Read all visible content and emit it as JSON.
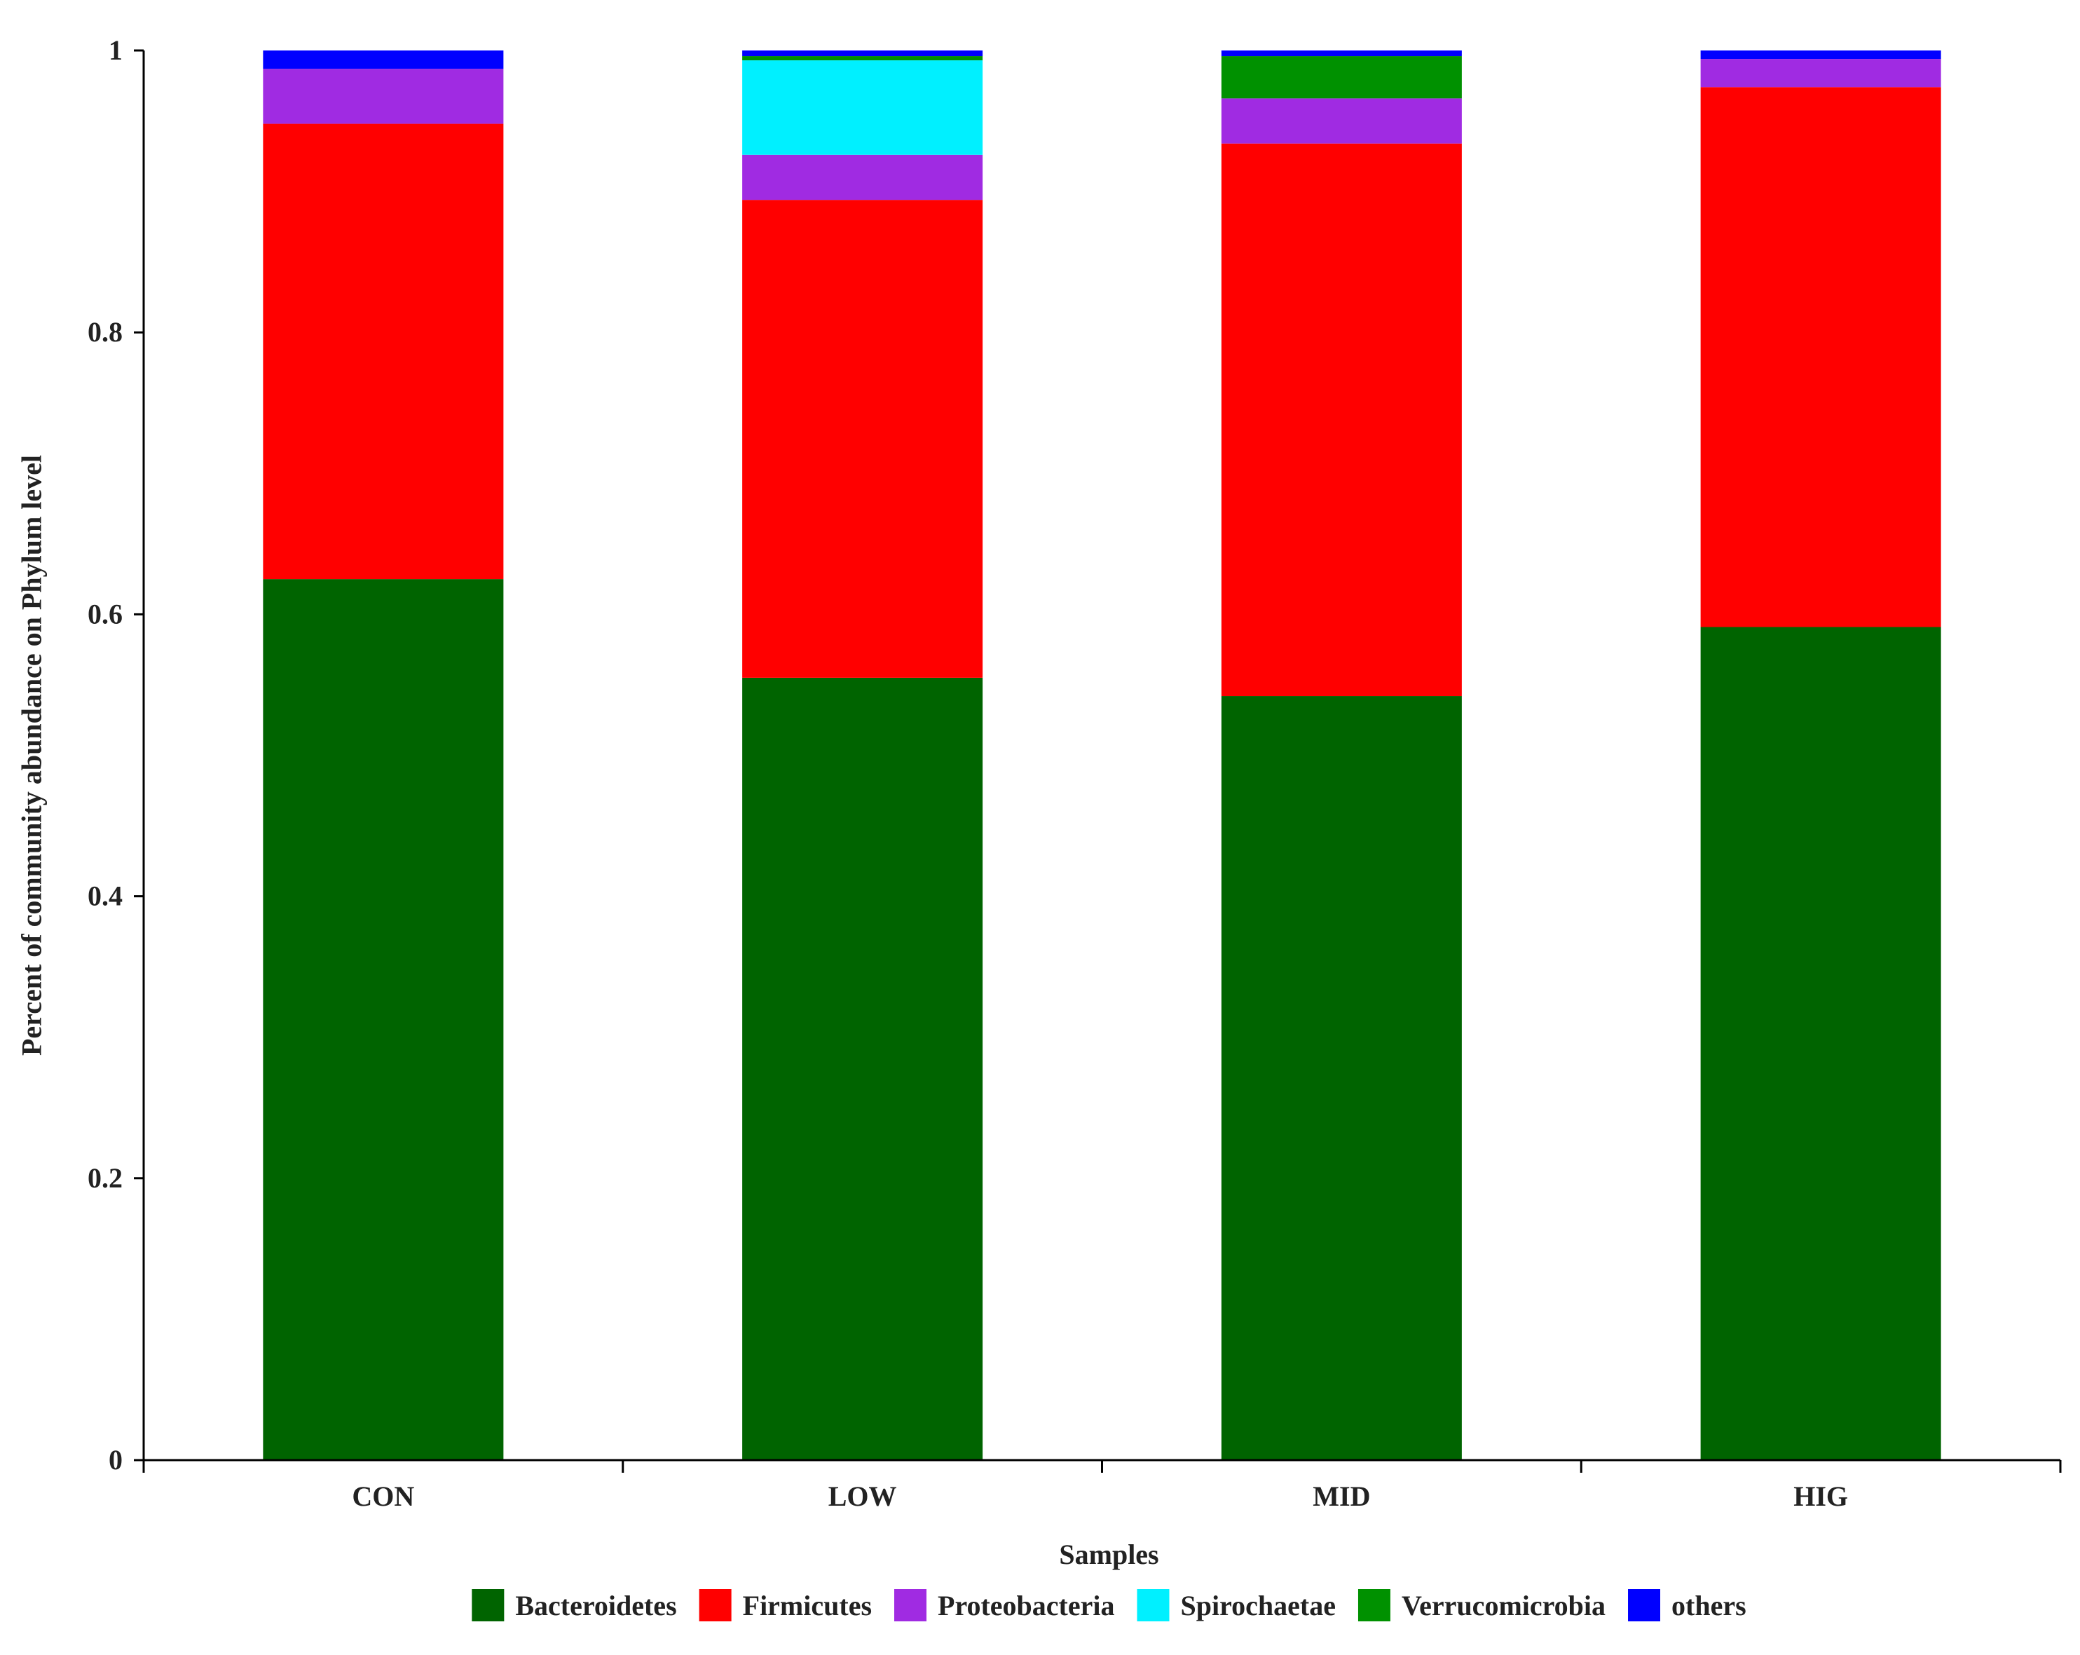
{
  "chart_data": {
    "type": "bar",
    "stacked": true,
    "xlabel": "Samples",
    "ylabel": "Percent of community abundance on Phylum level",
    "ylim": [
      0,
      1
    ],
    "yticks": [
      0,
      0.2,
      0.4,
      0.6,
      0.8,
      1
    ],
    "ytick_labels": [
      "0",
      "0.2",
      "0.4",
      "0.6",
      "0.8",
      "1"
    ],
    "categories": [
      "CON",
      "LOW",
      "MID",
      "HIG"
    ],
    "grid": false,
    "legend_position": "bottom",
    "series": [
      {
        "name": "Bacteroidetes",
        "color": "#006400",
        "values": [
          0.625,
          0.555,
          0.542,
          0.591
        ]
      },
      {
        "name": "Firmicutes",
        "color": "#ff0000",
        "values": [
          0.323,
          0.339,
          0.392,
          0.383
        ]
      },
      {
        "name": "Proteobacteria",
        "color": "#a02be2",
        "values": [
          0.039,
          0.032,
          0.032,
          0.02
        ]
      },
      {
        "name": "Spirochaetae",
        "color": "#00f0ff",
        "values": [
          0.0,
          0.067,
          0.0,
          0.0
        ]
      },
      {
        "name": "Verrucomicrobia",
        "color": "#009100",
        "values": [
          0.0,
          0.003,
          0.03,
          0.0
        ]
      },
      {
        "name": "others",
        "color": "#0000ff",
        "values": [
          0.013,
          0.004,
          0.004,
          0.006
        ]
      }
    ]
  }
}
